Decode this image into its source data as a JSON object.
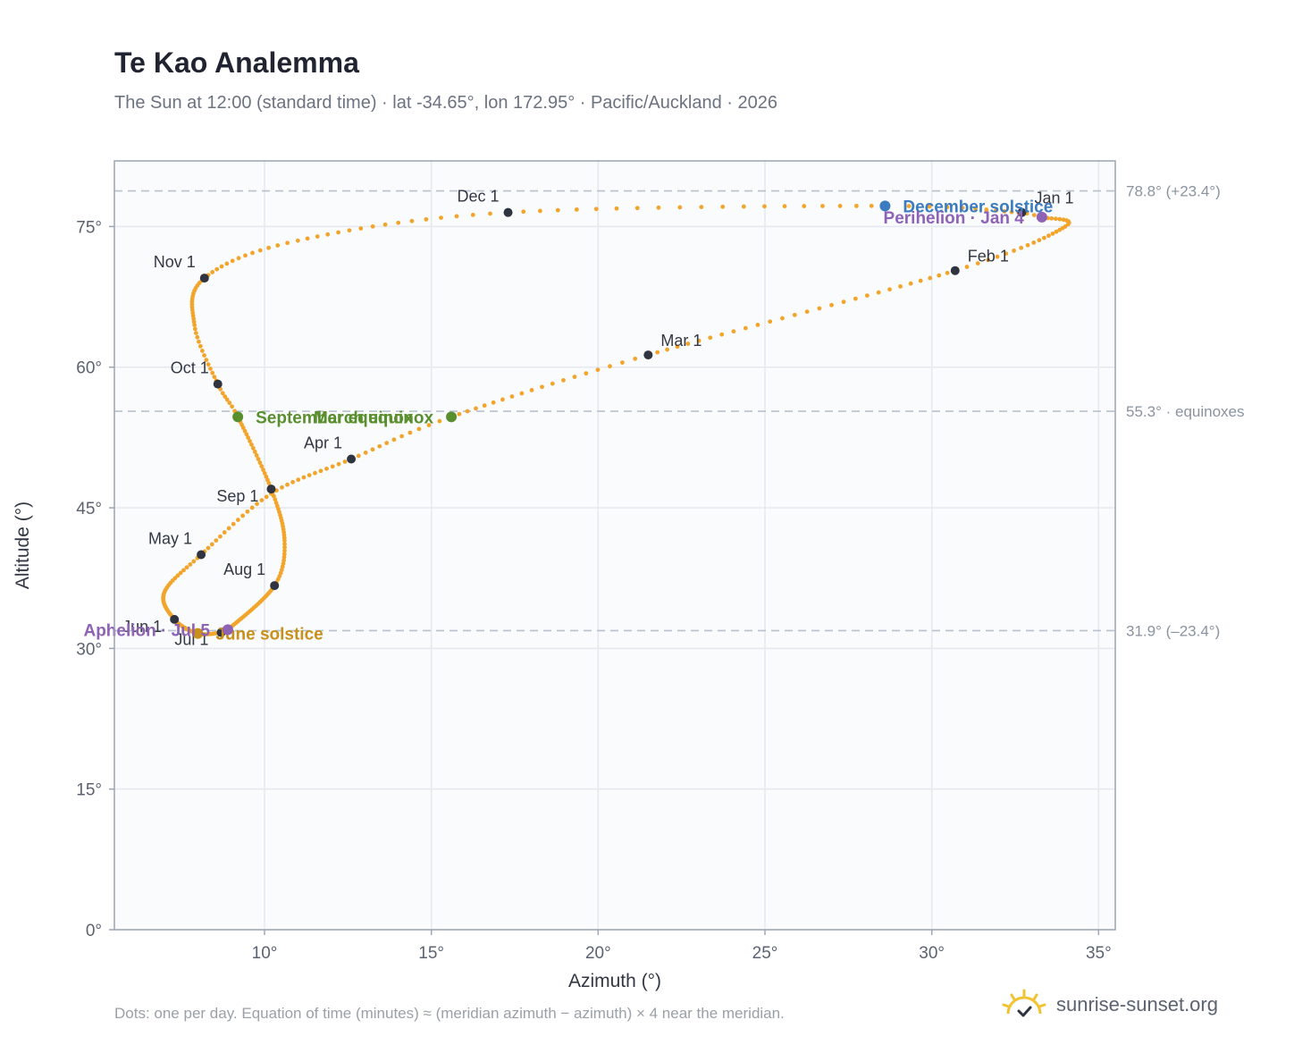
{
  "header": {
    "title": "Te Kao Analemma",
    "subtitle": "The Sun at 12:00 (standard time) · lat -34.65°, lon 172.95° · Pacific/Auckland · 2026"
  },
  "footer": {
    "note": "Dots: one per day. Equation of time (minutes) ≈ (meridian azimuth − azimuth) × 4 near the meridian.",
    "brand": "sunrise-sunset.org"
  },
  "colors": {
    "curve": "#f2a52a",
    "month_marker": "#2f3440",
    "equinox": "#5a8f2e",
    "december_solstice": "#3b7bbf",
    "june_solstice": "#c8901a",
    "perihelion_aphelion": "#8e62b5",
    "reference_line": "#b8c2ce",
    "plot_background": "#f9fbfd",
    "grid": "#e5e9ef"
  },
  "chart_data": {
    "type": "scatter",
    "xlabel": "Azimuth (°)",
    "ylabel": "Altitude (°)",
    "xlim": [
      5.5,
      35.5
    ],
    "ylim": [
      0,
      82
    ],
    "xticks": [
      10,
      15,
      20,
      25,
      30,
      35
    ],
    "yticks": [
      0,
      15,
      30,
      45,
      60,
      75
    ],
    "tick_suffix": "°",
    "grid": true,
    "reference_lines": [
      {
        "y": 78.8,
        "label": "78.8° (+23.4°)"
      },
      {
        "y": 55.3,
        "label": "55.3° · equinoxes"
      },
      {
        "y": 31.9,
        "label": "31.9° (–23.4°)"
      }
    ],
    "path_keypoints": [
      {
        "date": "Jan 1",
        "az": 32.7,
        "alt": 76.5
      },
      {
        "date": "Jan 4",
        "az": 33.3,
        "alt": 76.0
      },
      {
        "date": "Jan 15",
        "az": 34.0,
        "alt": 75.0
      },
      {
        "date": "Feb 1",
        "az": 30.7,
        "alt": 70.3
      },
      {
        "date": "Mar 1",
        "az": 21.5,
        "alt": 61.3
      },
      {
        "date": "Mar 20",
        "az": 15.6,
        "alt": 54.7
      },
      {
        "date": "Apr 1",
        "az": 12.6,
        "alt": 50.2
      },
      {
        "date": "Apr 15",
        "az": 10.2,
        "alt": 46.5
      },
      {
        "date": "May 1",
        "az": 8.1,
        "alt": 40.0
      },
      {
        "date": "May 15",
        "az": 7.0,
        "alt": 36.0
      },
      {
        "date": "Jun 1",
        "az": 7.3,
        "alt": 33.1
      },
      {
        "date": "Jun 21",
        "az": 8.0,
        "alt": 31.6
      },
      {
        "date": "Jul 1",
        "az": 8.7,
        "alt": 31.7
      },
      {
        "date": "Jul 5",
        "az": 8.9,
        "alt": 32.0
      },
      {
        "date": "Aug 1",
        "az": 10.3,
        "alt": 36.7
      },
      {
        "date": "Aug 15",
        "az": 10.6,
        "alt": 41.5
      },
      {
        "date": "Sep 1",
        "az": 10.2,
        "alt": 47.0
      },
      {
        "date": "Sep 23",
        "az": 9.2,
        "alt": 54.7
      },
      {
        "date": "Oct 1",
        "az": 8.6,
        "alt": 58.2
      },
      {
        "date": "Oct 15",
        "az": 7.9,
        "alt": 64.5
      },
      {
        "date": "Nov 1",
        "az": 8.2,
        "alt": 69.5
      },
      {
        "date": "Nov 15",
        "az": 11.0,
        "alt": 73.5
      },
      {
        "date": "Dec 1",
        "az": 17.3,
        "alt": 76.5
      },
      {
        "date": "Dec 21",
        "az": 28.6,
        "alt": 77.2
      },
      {
        "date": "Dec 31",
        "az": 32.6,
        "alt": 76.5
      }
    ],
    "month_markers": [
      {
        "label": "Jan 1",
        "az": 32.7,
        "alt": 76.5,
        "anchor": "ne"
      },
      {
        "label": "Feb 1",
        "az": 30.7,
        "alt": 70.3,
        "anchor": "ne"
      },
      {
        "label": "Mar 1",
        "az": 21.5,
        "alt": 61.3,
        "anchor": "ne"
      },
      {
        "label": "Apr 1",
        "az": 12.6,
        "alt": 50.2,
        "anchor": "nw"
      },
      {
        "label": "May 1",
        "az": 8.1,
        "alt": 40.0,
        "anchor": "nw"
      },
      {
        "label": "Jun 1",
        "az": 7.3,
        "alt": 33.1,
        "anchor": "sw"
      },
      {
        "label": "Jul 1",
        "az": 8.7,
        "alt": 31.7,
        "anchor": "sw"
      },
      {
        "label": "Aug 1",
        "az": 10.3,
        "alt": 36.7,
        "anchor": "nw"
      },
      {
        "label": "Sep 1",
        "az": 10.2,
        "alt": 47.0,
        "anchor": "sw"
      },
      {
        "label": "Oct 1",
        "az": 8.6,
        "alt": 58.2,
        "anchor": "nw"
      },
      {
        "label": "Nov 1",
        "az": 8.2,
        "alt": 69.5,
        "anchor": "nw"
      },
      {
        "label": "Dec 1",
        "az": 17.3,
        "alt": 76.5,
        "anchor": "nw"
      }
    ],
    "events": [
      {
        "name": "December solstice",
        "az": 28.6,
        "alt": 77.2,
        "color": "#3b7bbf",
        "label_side": "right"
      },
      {
        "name": "June solstice",
        "az": 8.0,
        "alt": 31.6,
        "color": "#c8901a",
        "label_side": "right"
      },
      {
        "name": "March equinox",
        "az": 15.6,
        "alt": 54.7,
        "color": "#5a8f2e",
        "label_side": "left"
      },
      {
        "name": "September equinox",
        "az": 9.2,
        "alt": 54.7,
        "color": "#5a8f2e",
        "label_side": "right"
      },
      {
        "name": "Perihelion · Jan 4",
        "az": 33.3,
        "alt": 76.0,
        "color": "#8e62b5",
        "label_side": "left"
      },
      {
        "name": "Aphelion · Jul 5",
        "az": 8.9,
        "alt": 32.0,
        "color": "#8e62b5",
        "label_side": "left"
      }
    ]
  }
}
